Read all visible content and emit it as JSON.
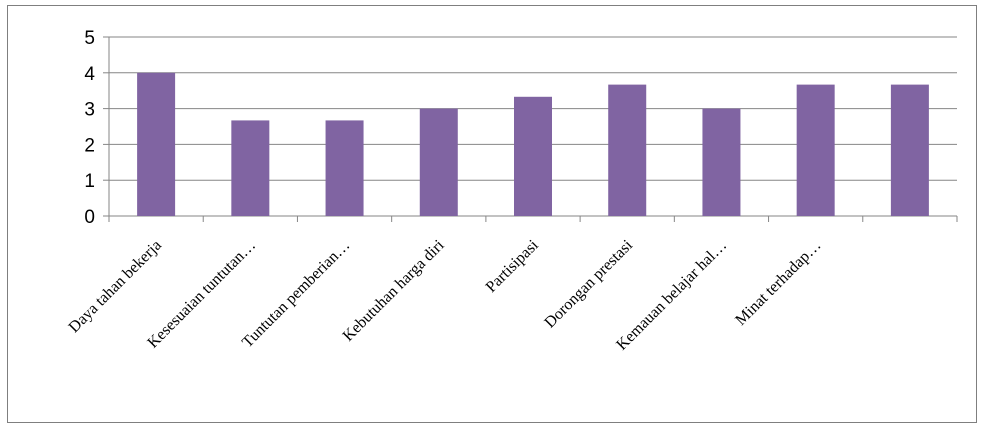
{
  "chart_data": {
    "type": "bar",
    "categories": [
      "Daya tahan bekerja",
      "Kesesuaian tuntutan…",
      "Tuntutan pemberian…",
      "Kebutuhan harga diri",
      "Partisipasi",
      "Dorongan prestasi",
      "Kemauan belajar hal…",
      "Minat terhadap…",
      ""
    ],
    "values": [
      4.0,
      2.67,
      2.67,
      3.0,
      3.33,
      3.67,
      3.0,
      3.67,
      3.67
    ],
    "ylim": [
      0,
      5
    ],
    "yticks": [
      "0",
      "1",
      "2",
      "3",
      "4",
      "5"
    ],
    "grid": true,
    "legend": "none",
    "colors": {
      "bar": "#8064a2",
      "grid": "#868686",
      "axis": "#868686"
    }
  }
}
